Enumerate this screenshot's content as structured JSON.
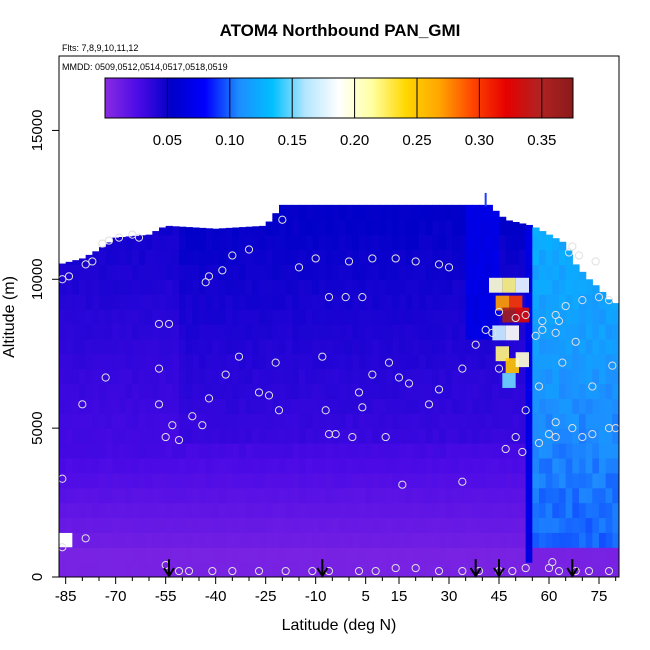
{
  "chart_data": {
    "type": "heatmap",
    "title": "ATOM4 Northbound PAN_GMI",
    "subtitle_flights": "Flts: 7,8,9,10,11,12",
    "subtitle_dates": "MMDD: 0509,0512,0514,0517,0518,0519",
    "xlabel": "Latitude (deg N)",
    "ylabel": "Altitude (m)",
    "xlim": [
      -87,
      81
    ],
    "ylim": [
      0,
      17500
    ],
    "x_ticks": [
      -85,
      -70,
      -55,
      -40,
      -25,
      -10,
      5,
      15,
      30,
      45,
      60,
      75
    ],
    "y_ticks": [
      0,
      5000,
      10000,
      15000
    ],
    "colorbar": {
      "ticks": [
        "0.05",
        "0.10",
        "0.15",
        "0.20",
        "0.25",
        "0.30",
        "0.35"
      ],
      "range": [
        0.0,
        0.375
      ],
      "colors": [
        "#8a2be2",
        "#4b0ae6",
        "#0000c8",
        "#0000ff",
        "#1e8cff",
        "#00bfff",
        "#b4e6ff",
        "#ffffff",
        "#ffffa0",
        "#ffd700",
        "#ffa500",
        "#ff4500",
        "#e60000",
        "#b22222",
        "#8b1a1a"
      ]
    },
    "column_tops": [
      {
        "lat": -87,
        "top": 10500
      },
      {
        "lat": -80,
        "top": 10700
      },
      {
        "lat": -75,
        "top": 11000
      },
      {
        "lat": -70,
        "top": 11400
      },
      {
        "lat": -60,
        "top": 11500
      },
      {
        "lat": -55,
        "top": 11800
      },
      {
        "lat": -40,
        "top": 11700
      },
      {
        "lat": -25,
        "top": 11800
      },
      {
        "lat": -20,
        "top": 12500
      },
      {
        "lat": 42,
        "top": 12500
      },
      {
        "lat": 47,
        "top": 12000
      },
      {
        "lat": 55,
        "top": 11800
      },
      {
        "lat": 65,
        "top": 11200
      },
      {
        "lat": 68,
        "top": 10500
      },
      {
        "lat": 72,
        "top": 10000
      },
      {
        "lat": 75,
        "top": 9700
      },
      {
        "lat": 79,
        "top": 9200
      }
    ],
    "plume_cells": [
      {
        "lat": 44,
        "alt": 9800,
        "value": 0.2
      },
      {
        "lat": 48,
        "alt": 9800,
        "value": 0.22
      },
      {
        "lat": 52,
        "alt": 9800,
        "value": 0.18
      },
      {
        "lat": 46,
        "alt": 9200,
        "value": 0.27
      },
      {
        "lat": 50,
        "alt": 9200,
        "value": 0.3
      },
      {
        "lat": 48,
        "alt": 8800,
        "value": 0.36
      },
      {
        "lat": 52,
        "alt": 8800,
        "value": 0.33
      },
      {
        "lat": 45,
        "alt": 8200,
        "value": 0.17
      },
      {
        "lat": 49,
        "alt": 8200,
        "value": 0.19
      },
      {
        "lat": 46,
        "alt": 7500,
        "value": 0.22
      },
      {
        "lat": 49,
        "alt": 7100,
        "value": 0.25
      },
      {
        "lat": 52,
        "alt": 7300,
        "value": 0.2
      },
      {
        "lat": 48,
        "alt": 6600,
        "value": 0.15
      }
    ],
    "sample_points": [
      {
        "lat": -86,
        "alt": 10000
      },
      {
        "lat": -84,
        "alt": 10100
      },
      {
        "lat": -79,
        "alt": 10500
      },
      {
        "lat": -77,
        "alt": 10600
      },
      {
        "lat": -74,
        "alt": 11200
      },
      {
        "lat": -72,
        "alt": 11300
      },
      {
        "lat": -69,
        "alt": 11400
      },
      {
        "lat": -65,
        "alt": 11500
      },
      {
        "lat": -63,
        "alt": 11400
      },
      {
        "lat": -35,
        "alt": 10800
      },
      {
        "lat": -30,
        "alt": 11000
      },
      {
        "lat": -20,
        "alt": 12000
      },
      {
        "lat": -43,
        "alt": 9900
      },
      {
        "lat": -42,
        "alt": 10100
      },
      {
        "lat": -38,
        "alt": 10300
      },
      {
        "lat": -15,
        "alt": 10400
      },
      {
        "lat": -10,
        "alt": 10700
      },
      {
        "lat": 0,
        "alt": 10600
      },
      {
        "lat": 7,
        "alt": 10700
      },
      {
        "lat": 14,
        "alt": 10700
      },
      {
        "lat": 20,
        "alt": 10600
      },
      {
        "lat": 27,
        "alt": 10500
      },
      {
        "lat": 30,
        "alt": 10400
      },
      {
        "lat": 66,
        "alt": 10900
      },
      {
        "lat": 67,
        "alt": 11100
      },
      {
        "lat": 69,
        "alt": 10800
      },
      {
        "lat": 74,
        "alt": 10600
      },
      {
        "lat": -6,
        "alt": 9400
      },
      {
        "lat": -1,
        "alt": 9400
      },
      {
        "lat": 4,
        "alt": 9400
      },
      {
        "lat": -57,
        "alt": 8500
      },
      {
        "lat": -54,
        "alt": 8500
      },
      {
        "lat": 45,
        "alt": 8900
      },
      {
        "lat": 50,
        "alt": 8700
      },
      {
        "lat": 53,
        "alt": 8800
      },
      {
        "lat": 58,
        "alt": 8600
      },
      {
        "lat": 62,
        "alt": 8800
      },
      {
        "lat": 63,
        "alt": 8600
      },
      {
        "lat": 65,
        "alt": 9100
      },
      {
        "lat": 70,
        "alt": 9300
      },
      {
        "lat": 75,
        "alt": 9400
      },
      {
        "lat": 78,
        "alt": 9300
      },
      {
        "lat": 41,
        "alt": 8300
      },
      {
        "lat": 43,
        "alt": 8200
      },
      {
        "lat": 38,
        "alt": 7800
      },
      {
        "lat": 56,
        "alt": 8100
      },
      {
        "lat": 58,
        "alt": 8300
      },
      {
        "lat": 62,
        "alt": 8200
      },
      {
        "lat": 68,
        "alt": 7900
      },
      {
        "lat": -73,
        "alt": 6700
      },
      {
        "lat": -57,
        "alt": 7000
      },
      {
        "lat": -33,
        "alt": 7400
      },
      {
        "lat": -22,
        "alt": 7200
      },
      {
        "lat": -8,
        "alt": 7400
      },
      {
        "lat": 12,
        "alt": 7200
      },
      {
        "lat": 34,
        "alt": 7000
      },
      {
        "lat": 45,
        "alt": 7000
      },
      {
        "lat": 64,
        "alt": 7200
      },
      {
        "lat": 79,
        "alt": 7100
      },
      {
        "lat": -37,
        "alt": 6800
      },
      {
        "lat": 7,
        "alt": 6800
      },
      {
        "lat": 15,
        "alt": 6700
      },
      {
        "lat": -27,
        "alt": 6200
      },
      {
        "lat": -24,
        "alt": 6100
      },
      {
        "lat": 3,
        "alt": 6200
      },
      {
        "lat": 18,
        "alt": 6500
      },
      {
        "lat": 27,
        "alt": 6300
      },
      {
        "lat": 57,
        "alt": 6400
      },
      {
        "lat": 73,
        "alt": 6400
      },
      {
        "lat": -42,
        "alt": 6000
      },
      {
        "lat": -80,
        "alt": 5800
      },
      {
        "lat": -57,
        "alt": 5800
      },
      {
        "lat": -47,
        "alt": 5400
      },
      {
        "lat": -21,
        "alt": 5600
      },
      {
        "lat": -7,
        "alt": 5600
      },
      {
        "lat": 4,
        "alt": 5700
      },
      {
        "lat": 24,
        "alt": 5800
      },
      {
        "lat": 53,
        "alt": 5600
      },
      {
        "lat": 62,
        "alt": 5200
      },
      {
        "lat": 67,
        "alt": 5000
      },
      {
        "lat": 78,
        "alt": 5000
      },
      {
        "lat": -53,
        "alt": 5100
      },
      {
        "lat": -44,
        "alt": 5100
      },
      {
        "lat": -55,
        "alt": 4700
      },
      {
        "lat": -51,
        "alt": 4600
      },
      {
        "lat": -6,
        "alt": 4800
      },
      {
        "lat": -4,
        "alt": 4800
      },
      {
        "lat": 1,
        "alt": 4700
      },
      {
        "lat": 11,
        "alt": 4700
      },
      {
        "lat": 50,
        "alt": 4700
      },
      {
        "lat": 60,
        "alt": 4800
      },
      {
        "lat": 62,
        "alt": 4700
      },
      {
        "lat": 70,
        "alt": 4700
      },
      {
        "lat": 73,
        "alt": 4800
      },
      {
        "lat": 80,
        "alt": 5000
      },
      {
        "lat": 47,
        "alt": 4300
      },
      {
        "lat": 52,
        "alt": 4200
      },
      {
        "lat": 57,
        "alt": 4500
      },
      {
        "lat": -86,
        "alt": 3300
      },
      {
        "lat": 16,
        "alt": 3100
      },
      {
        "lat": 34,
        "alt": 3200
      },
      {
        "lat": -79,
        "alt": 1300
      },
      {
        "lat": -86,
        "alt": 1000
      },
      {
        "lat": -55,
        "alt": 400
      },
      {
        "lat": -51,
        "alt": 200
      },
      {
        "lat": -48,
        "alt": 200
      },
      {
        "lat": -41,
        "alt": 200
      },
      {
        "lat": -35,
        "alt": 200
      },
      {
        "lat": -27,
        "alt": 200
      },
      {
        "lat": -19,
        "alt": 200
      },
      {
        "lat": -11,
        "alt": 200
      },
      {
        "lat": -6,
        "alt": 200
      },
      {
        "lat": 3,
        "alt": 200
      },
      {
        "lat": 8,
        "alt": 200
      },
      {
        "lat": 14,
        "alt": 300
      },
      {
        "lat": 20,
        "alt": 300
      },
      {
        "lat": 27,
        "alt": 200
      },
      {
        "lat": 34,
        "alt": 200
      },
      {
        "lat": 39,
        "alt": 200
      },
      {
        "lat": 45,
        "alt": 200
      },
      {
        "lat": 49,
        "alt": 200
      },
      {
        "lat": 53,
        "alt": 300
      },
      {
        "lat": 60,
        "alt": 300
      },
      {
        "lat": 63,
        "alt": 200
      },
      {
        "lat": 68,
        "alt": 200
      },
      {
        "lat": 72,
        "alt": 200
      },
      {
        "lat": 78,
        "alt": 200
      },
      {
        "lat": 61,
        "alt": 500
      }
    ],
    "arrow_markers": [
      -54,
      -8,
      38,
      45,
      67
    ],
    "top_marker_lat": 41
  }
}
